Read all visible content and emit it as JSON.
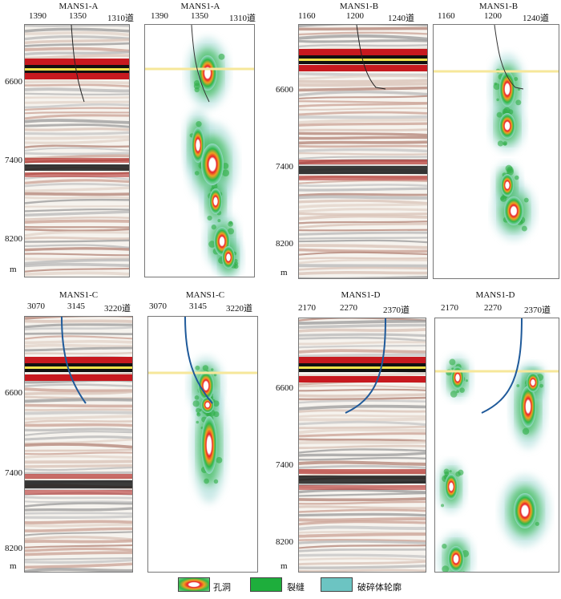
{
  "panels": {
    "a_seis": {
      "title": "MANS1-A",
      "ticks": [
        "1390",
        "1350",
        "1310道"
      ],
      "ylabels": [
        "6600",
        "7400",
        "8200"
      ],
      "unit": "m"
    },
    "a_attr": {
      "title": "MANS1-A",
      "ticks": [
        "1390",
        "1350",
        "1310道"
      ]
    },
    "b_seis": {
      "title": "MANS1-B",
      "ticks": [
        "1160",
        "1200",
        "1240道"
      ],
      "ylabels": [
        "6600",
        "7400",
        "8200"
      ],
      "unit": "m"
    },
    "b_attr": {
      "title": "MANS1-B",
      "ticks": [
        "1160",
        "1200",
        "1240道"
      ]
    },
    "c_seis": {
      "title": "MANS1-C",
      "ticks": [
        "3070",
        "3145",
        "3220道"
      ],
      "ylabels": [
        "6600",
        "7400",
        "8200"
      ],
      "unit": "m"
    },
    "c_attr": {
      "title": "MANS1-C",
      "ticks": [
        "3070",
        "3145",
        "3220道"
      ]
    },
    "d_seis": {
      "title": "MANS1-D",
      "ticks": [
        "2170",
        "2270",
        "2370道"
      ],
      "ylabels": [
        "6600",
        "7400",
        "8200"
      ],
      "unit": "m"
    },
    "d_attr": {
      "title": "MANS1-D",
      "ticks": [
        "2170",
        "2270",
        "2370道"
      ]
    }
  },
  "legend": {
    "cave": "孔洞",
    "fracture": "裂缝",
    "outline": "破碎体轮廓"
  }
}
